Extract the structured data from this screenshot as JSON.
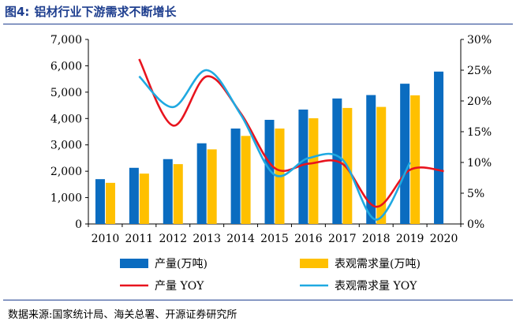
{
  "figure": {
    "label": "图4:",
    "title": "铝材行业下游需求不断增长",
    "source": "数据来源:国家统计局、海关总署、开源证券研究所"
  },
  "colors": {
    "production_bar": "#0a6cc0",
    "demand_bar": "#ffc000",
    "production_yoy": "#e8141e",
    "demand_yoy": "#1fa9e1",
    "title": "#1f3f8f"
  },
  "chart_data": {
    "type": "bar",
    "categories": [
      "2010",
      "2011",
      "2012",
      "2013",
      "2014",
      "2015",
      "2016",
      "2017",
      "2018",
      "2019",
      "2020"
    ],
    "series": [
      {
        "name": "产量(万吨)",
        "kind": "bar",
        "axis": "left",
        "values": [
          1700,
          2130,
          2460,
          3060,
          3620,
          3950,
          4340,
          4760,
          4890,
          5320,
          5780
        ]
      },
      {
        "name": "表观需求量(万吨)",
        "kind": "bar",
        "axis": "left",
        "values": [
          1560,
          1910,
          2270,
          2830,
          3340,
          3620,
          4010,
          4400,
          4440,
          4880,
          null
        ]
      },
      {
        "name": "产量 YOY",
        "kind": "line",
        "axis": "right",
        "values": [
          null,
          26.8,
          16.0,
          24.0,
          18.0,
          9.1,
          9.8,
          9.8,
          2.8,
          8.8,
          8.6
        ]
      },
      {
        "name": "表观需求量 YOY",
        "kind": "line",
        "axis": "right",
        "values": [
          null,
          24.0,
          19.0,
          25.0,
          17.8,
          8.0,
          10.7,
          10.5,
          0.7,
          10.0,
          null
        ]
      }
    ],
    "y_left": {
      "range": [
        0,
        7000
      ],
      "ticks": [
        "0",
        "1,000",
        "2,000",
        "3,000",
        "4,000",
        "5,000",
        "6,000",
        "7,000"
      ]
    },
    "y_right": {
      "range": [
        0,
        30
      ],
      "ticks": [
        "0%",
        "5%",
        "10%",
        "15%",
        "20%",
        "25%",
        "30%"
      ]
    },
    "grid": false,
    "legend_position": "bottom"
  }
}
